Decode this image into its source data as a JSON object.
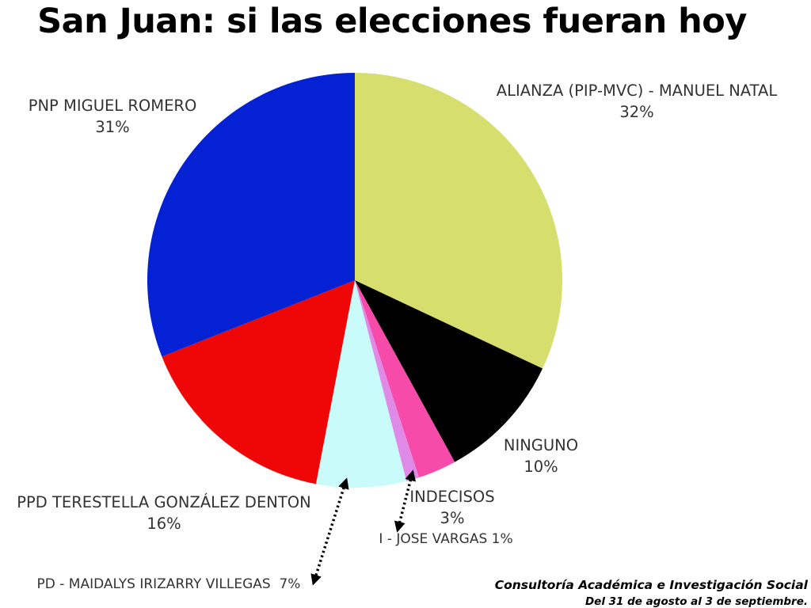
{
  "chart_data": {
    "type": "pie",
    "title": "San Juan: si las elecciones fueran hoy",
    "slices": [
      {
        "label": "ALIANZA (PIP-MVC) - MANUEL NATAL",
        "value_text": "32%",
        "value": 32,
        "color": "#d6df6d"
      },
      {
        "label": "NINGUNO",
        "value_text": "10%",
        "value": 10,
        "color": "#000000"
      },
      {
        "label": "INDECISOS",
        "value_text": "3%",
        "value": 3,
        "color": "#f74ba9"
      },
      {
        "label": "I - JOSE VARGAS 1%",
        "value_text": "",
        "value": 1,
        "color": "#e08ae8"
      },
      {
        "label": "PD - MAIDALYS IRIZARRY VILLEGAS  7%",
        "value_text": "",
        "value": 7,
        "color": "#c8fbfa"
      },
      {
        "label": "PPD TERESTELLA GONZÁLEZ DENTON",
        "value_text": "16%",
        "value": 16,
        "color": "#ef0707"
      },
      {
        "label": "PNP MIGUEL ROMERO",
        "value_text": "31%",
        "value": 31,
        "color": "#0521d4"
      }
    ]
  },
  "footer": {
    "source": "Consultoría Académica e Investigación Social",
    "dates": "Del 31 de agosto al 3 de septiembre."
  }
}
